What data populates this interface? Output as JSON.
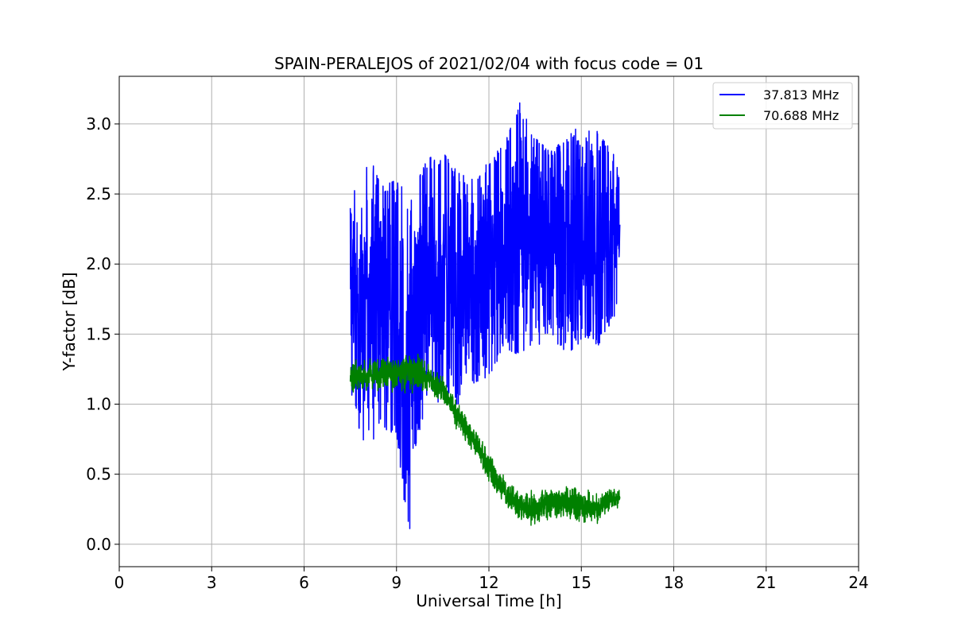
{
  "chart_data": {
    "type": "line",
    "title": "SPAIN-PERALEJOS of 2021/02/04 with focus code = 01",
    "xlabel": "Universal Time [h]",
    "ylabel": "Y-factor [dB]",
    "xlim": [
      0,
      24
    ],
    "ylim": [
      -0.16,
      3.34
    ],
    "xticks": [
      0,
      3,
      6,
      9,
      12,
      15,
      18,
      21,
      24
    ],
    "xtick_labels": [
      "0",
      "3",
      "6",
      "9",
      "12",
      "15",
      "18",
      "21",
      "24"
    ],
    "yticks": [
      0.0,
      0.5,
      1.0,
      1.5,
      2.0,
      2.5,
      3.0
    ],
    "ytick_labels": [
      "0.0",
      "0.5",
      "1.0",
      "1.5",
      "2.0",
      "2.5",
      "3.0"
    ],
    "grid": true,
    "legend_position": "top-right",
    "series": [
      {
        "name": "37.813 MHz",
        "color": "#0000ff",
        "x": [
          7.5,
          8.0,
          8.5,
          9.0,
          9.4,
          9.6,
          10.0,
          10.5,
          11.0,
          11.5,
          12.0,
          12.5,
          13.0,
          13.5,
          14.0,
          14.5,
          15.0,
          15.5,
          16.0,
          16.25
        ],
        "y_low": [
          1.0,
          0.7,
          0.8,
          0.8,
          0.0,
          0.65,
          1.05,
          1.0,
          1.0,
          1.15,
          1.2,
          1.4,
          1.35,
          1.4,
          1.5,
          1.35,
          1.45,
          1.4,
          1.6,
          1.7
        ],
        "y_high": [
          2.4,
          2.85,
          2.55,
          2.6,
          2.5,
          2.55,
          2.75,
          2.8,
          2.65,
          2.6,
          2.75,
          2.85,
          3.15,
          2.9,
          2.8,
          2.9,
          3.0,
          2.95,
          2.8,
          2.7
        ]
      },
      {
        "name": "70.688 MHz",
        "color": "#008000",
        "x": [
          7.5,
          8.0,
          8.5,
          9.0,
          9.5,
          10.0,
          10.5,
          11.0,
          11.5,
          12.0,
          12.5,
          13.0,
          13.5,
          14.0,
          14.5,
          15.0,
          15.5,
          16.0,
          16.25
        ],
        "y_low": [
          1.05,
          1.08,
          1.1,
          1.08,
          1.08,
          1.05,
          0.98,
          0.8,
          0.62,
          0.42,
          0.28,
          0.15,
          0.13,
          0.15,
          0.15,
          0.13,
          0.12,
          0.22,
          0.25
        ],
        "y_high": [
          1.32,
          1.35,
          1.35,
          1.35,
          1.38,
          1.32,
          1.22,
          1.02,
          0.85,
          0.68,
          0.48,
          0.4,
          0.38,
          0.42,
          0.45,
          0.42,
          0.38,
          0.42,
          0.42
        ]
      }
    ]
  }
}
